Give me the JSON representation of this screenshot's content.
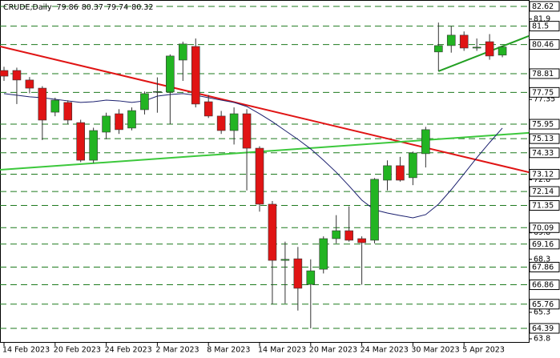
{
  "chart_data": {
    "type": "candlestick",
    "symbol": "CRUDE,Daily",
    "header_ohlc": [
      79.86,
      80.37,
      79.74,
      80.32
    ],
    "categories": [
      "14 Feb 2023",
      null,
      null,
      null,
      "20 Feb 2023",
      null,
      null,
      null,
      "24 Feb 2023",
      null,
      null,
      null,
      "2 Mar 2023",
      null,
      null,
      null,
      "8 Mar 2023",
      null,
      null,
      null,
      "14 Mar 2023",
      null,
      null,
      null,
      "20 Mar 2023",
      null,
      null,
      null,
      "24 Mar 2023",
      null,
      null,
      null,
      "30 Mar 2023",
      null,
      null,
      null,
      "5 Apr 2023",
      null,
      null,
      null
    ],
    "ohlc": [
      [
        78.99,
        79.2,
        78.4,
        78.67
      ],
      [
        78.99,
        79.15,
        77.09,
        78.45
      ],
      [
        78.45,
        78.62,
        77.7,
        77.99
      ],
      [
        77.99,
        78.1,
        75.05,
        76.18
      ],
      [
        76.63,
        77.45,
        76.4,
        77.31
      ],
      [
        77.18,
        77.3,
        75.95,
        76.18
      ],
      [
        76.04,
        76.2,
        73.8,
        73.91
      ],
      [
        73.91,
        75.75,
        73.75,
        75.59
      ],
      [
        75.5,
        76.6,
        75.1,
        76.41
      ],
      [
        76.54,
        76.8,
        75.4,
        75.64
      ],
      [
        75.73,
        76.9,
        75.6,
        76.72
      ],
      [
        76.77,
        77.8,
        76.5,
        77.68
      ],
      [
        77.77,
        78.6,
        76.6,
        77.8
      ],
      [
        77.77,
        79.9,
        75.95,
        79.81
      ],
      [
        79.58,
        80.62,
        78.4,
        80.49
      ],
      [
        80.35,
        80.8,
        76.9,
        77.09
      ],
      [
        77.22,
        77.6,
        76.3,
        76.41
      ],
      [
        76.41,
        76.7,
        75.4,
        75.59
      ],
      [
        75.59,
        76.9,
        74.8,
        76.54
      ],
      [
        76.54,
        76.8,
        72.2,
        74.59
      ],
      [
        74.59,
        74.7,
        71.0,
        71.42
      ],
      [
        71.42,
        71.6,
        65.76,
        68.24
      ],
      [
        68.24,
        69.3,
        65.8,
        68.3
      ],
      [
        68.33,
        69.0,
        65.4,
        66.66
      ],
      [
        66.88,
        68.3,
        64.39,
        67.65
      ],
      [
        67.74,
        69.6,
        67.5,
        69.47
      ],
      [
        69.47,
        70.8,
        69.2,
        69.92
      ],
      [
        69.92,
        71.3,
        69.3,
        69.38
      ],
      [
        69.47,
        69.6,
        66.86,
        69.24
      ],
      [
        69.38,
        72.9,
        69.2,
        72.83
      ],
      [
        72.78,
        73.9,
        72.2,
        73.6
      ],
      [
        73.6,
        74.1,
        72.7,
        72.78
      ],
      [
        72.92,
        74.4,
        72.5,
        74.32
      ],
      [
        74.28,
        75.8,
        73.5,
        75.64
      ],
      [
        80.04,
        81.7,
        78.95,
        80.4
      ],
      [
        80.4,
        81.5,
        80.0,
        80.99
      ],
      [
        80.99,
        81.2,
        80.1,
        80.26
      ],
      [
        80.26,
        80.8,
        80.1,
        80.31
      ],
      [
        80.62,
        81.05,
        79.6,
        79.81
      ],
      [
        79.86,
        80.37,
        79.74,
        80.32
      ]
    ],
    "up_color": "#22b422",
    "down_color": "#e01414",
    "wick_color": "#333333",
    "moving_average": {
      "color": "#1a1f6e",
      "values": [
        77.68,
        77.59,
        77.5,
        77.45,
        77.36,
        77.27,
        77.18,
        77.22,
        77.31,
        77.27,
        77.18,
        77.27,
        77.54,
        77.63,
        77.68,
        77.59,
        77.45,
        77.31,
        77.18,
        76.95,
        76.54,
        76.09,
        75.59,
        75.09,
        74.55,
        73.91,
        73.23,
        72.46,
        71.65,
        71.1,
        70.92,
        70.78,
        70.65,
        70.83,
        71.42,
        72.24,
        73.14,
        74.05,
        74.91,
        75.73
      ]
    },
    "trendlines": [
      {
        "color": "#e01414",
        "points": [
          [
            -0.31,
            80.35
          ],
          [
            41.07,
            73.23
          ]
        ]
      },
      {
        "color": "#3cc83c",
        "points": [
          [
            -0.31,
            73.37
          ],
          [
            41.07,
            75.46
          ]
        ]
      },
      {
        "color": "#22a022",
        "points": [
          [
            34,
            78.95
          ],
          [
            41.07,
            80.94
          ]
        ]
      }
    ],
    "levels": [
      82.62,
      81.5,
      80.46,
      78.81,
      77.75,
      75.95,
      75.13,
      74.33,
      73.12,
      72.14,
      71.35,
      70.09,
      69.16,
      67.86,
      66.86,
      65.76,
      64.39
    ],
    "level_color": "#1e7a1e",
    "yticks": [
      81.9,
      77.35,
      72.8,
      69.8,
      68.3,
      65.3,
      63.8
    ],
    "ylim": [
      63.62,
      82.98
    ]
  }
}
